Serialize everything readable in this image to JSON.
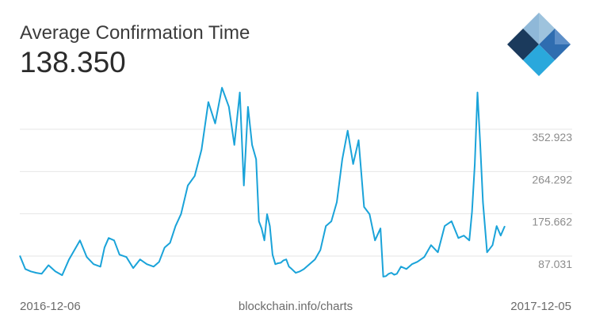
{
  "header": {
    "title": "Average Confirmation Time",
    "current_value": "138.350"
  },
  "logo": {
    "icon": "blockchain-logo-icon",
    "colors": [
      "#1b3a5c",
      "#2f6db0",
      "#2aa8dc",
      "#8fb8d8"
    ]
  },
  "footer": {
    "start_date": "2016-12-06",
    "source": "blockchain.info/charts",
    "end_date": "2017-12-05"
  },
  "chart_data": {
    "type": "line",
    "title": "Average Confirmation Time",
    "xlabel": "",
    "ylabel": "",
    "x_range": [
      "2016-12-06",
      "2017-12-05"
    ],
    "ylim": [
      20,
      460
    ],
    "y_ticks": [
      87.031,
      175.662,
      264.292,
      352.923
    ],
    "y_tick_labels": [
      "87.031",
      "175.662",
      "264.292",
      "352.923"
    ],
    "grid": true,
    "line_color": "#1aa3d9",
    "series": [
      {
        "x": [
          "2016-12-06",
          "2016-12-10",
          "2016-12-14",
          "2016-12-18",
          "2016-12-22",
          "2016-12-27",
          "2017-01-01",
          "2017-01-06",
          "2017-01-11",
          "2017-01-15",
          "2017-01-19",
          "2017-01-24",
          "2017-01-29",
          "2017-02-03",
          "2017-02-06",
          "2017-02-09",
          "2017-02-13",
          "2017-02-17",
          "2017-02-22",
          "2017-02-27",
          "2017-03-04",
          "2017-03-09",
          "2017-03-14",
          "2017-03-18",
          "2017-03-22",
          "2017-03-26",
          "2017-03-30",
          "2017-04-03",
          "2017-04-08",
          "2017-04-13",
          "2017-04-18",
          "2017-04-23",
          "2017-04-28",
          "2017-05-03",
          "2017-05-08",
          "2017-05-12",
          "2017-05-16",
          "2017-05-19",
          "2017-05-22",
          "2017-05-25",
          "2017-05-28",
          "2017-05-30",
          "2017-06-01",
          "2017-06-03",
          "2017-06-05",
          "2017-06-07",
          "2017-06-09",
          "2017-06-11",
          "2017-06-13",
          "2017-06-15",
          "2017-06-17",
          "2017-06-19",
          "2017-06-21",
          "2017-06-23",
          "2017-06-26",
          "2017-06-29",
          "2017-07-02",
          "2017-07-06",
          "2017-07-10",
          "2017-07-14",
          "2017-07-18",
          "2017-07-22",
          "2017-07-26",
          "2017-07-30",
          "2017-08-03",
          "2017-08-07",
          "2017-08-11",
          "2017-08-15",
          "2017-08-19",
          "2017-08-23",
          "2017-08-27",
          "2017-08-29",
          "2017-08-31",
          "2017-09-02",
          "2017-09-04",
          "2017-09-06",
          "2017-09-08",
          "2017-09-11",
          "2017-09-15",
          "2017-09-19",
          "2017-09-23",
          "2017-09-28",
          "2017-10-03",
          "2017-10-08",
          "2017-10-13",
          "2017-10-18",
          "2017-10-23",
          "2017-10-27",
          "2017-10-31",
          "2017-11-02",
          "2017-11-04",
          "2017-11-06",
          "2017-11-08",
          "2017-11-10",
          "2017-11-13",
          "2017-11-17",
          "2017-11-20",
          "2017-11-23",
          "2017-11-26"
        ],
        "values": [
          88,
          60,
          55,
          52,
          50,
          68,
          55,
          47,
          80,
          100,
          120,
          85,
          70,
          65,
          105,
          125,
          120,
          90,
          85,
          62,
          80,
          70,
          65,
          75,
          105,
          115,
          150,
          175,
          235,
          255,
          310,
          410,
          365,
          440,
          400,
          320,
          430,
          235,
          400,
          320,
          290,
          160,
          145,
          120,
          175,
          150,
          90,
          70,
          72,
          73,
          78,
          80,
          65,
          60,
          52,
          55,
          60,
          70,
          80,
          100,
          150,
          160,
          200,
          290,
          350,
          280,
          330,
          190,
          175,
          120,
          145,
          44,
          45,
          50,
          52,
          48,
          50,
          65,
          60,
          70,
          75,
          85,
          110,
          95,
          150,
          160,
          125,
          130,
          120,
          180,
          280,
          430,
          320,
          200,
          95,
          110,
          150,
          130,
          150
        ]
      }
    ]
  }
}
